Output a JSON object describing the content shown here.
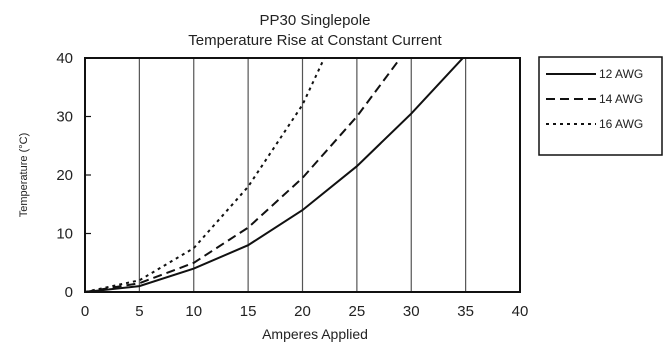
{
  "chart_data": {
    "type": "line",
    "title": [
      "PP30 Singlepole",
      "Temperature Rise at Constant Current"
    ],
    "xlabel": "Amperes Applied",
    "ylabel": "Temperature (°C)",
    "xlim": [
      0,
      40
    ],
    "ylim": [
      0,
      40
    ],
    "x_ticks": [
      0,
      5,
      10,
      15,
      20,
      25,
      30,
      35,
      40
    ],
    "y_ticks": [
      0,
      10,
      20,
      30,
      40
    ],
    "grid": "vertical",
    "legend_position": "outside-right",
    "series": [
      {
        "name": "12 AWG",
        "style": "solid",
        "x": [
          0,
          5,
          10,
          15,
          20,
          25,
          30,
          35
        ],
        "y": [
          0,
          1,
          4,
          8,
          14,
          21.5,
          30.5,
          40.5
        ]
      },
      {
        "name": "14 AWG",
        "style": "dashed",
        "x": [
          0,
          5,
          10,
          15,
          20,
          25,
          29
        ],
        "y": [
          0,
          1.5,
          5,
          11,
          19.5,
          30,
          40
        ]
      },
      {
        "name": "16 AWG",
        "style": "dotted",
        "x": [
          0,
          5,
          10,
          15,
          20,
          22
        ],
        "y": [
          0,
          2,
          7.5,
          18,
          32,
          40
        ]
      }
    ]
  },
  "colors": {
    "line": "#111111",
    "grid": "#555555",
    "background": "#ffffff"
  }
}
